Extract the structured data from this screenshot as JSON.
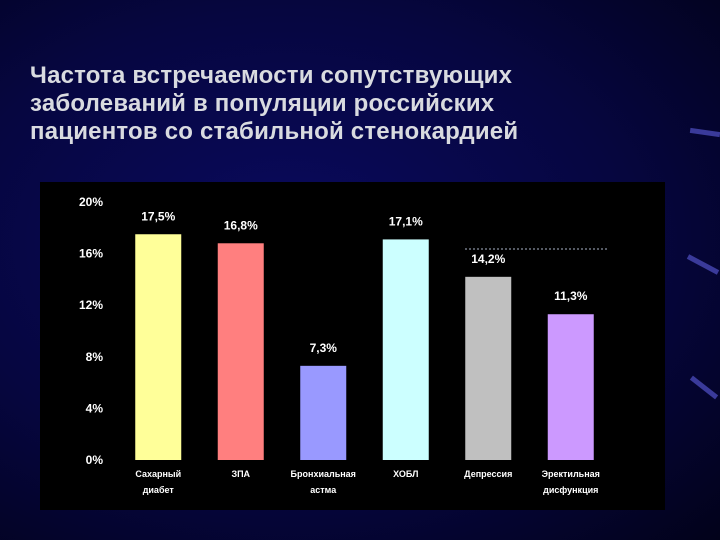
{
  "slide": {
    "title_lines": [
      "Частота встречаемости сопутствующих",
      "заболеваний в популяции российских",
      "пациентов со стабильной стенокардией"
    ]
  },
  "colors": {
    "background": "#060640",
    "title_text": "#d9dbe0",
    "chart_background": "#000000",
    "axis_text": "#ffffff"
  },
  "chart_data": {
    "type": "bar",
    "title": "",
    "xlabel": "",
    "ylabel": "",
    "ylim": [
      0,
      20
    ],
    "y_ticks": [
      "0%",
      "4%",
      "8%",
      "12%",
      "16%",
      "20%"
    ],
    "y_tick_values": [
      0,
      4,
      8,
      12,
      16,
      20
    ],
    "grid": false,
    "legend": "none",
    "categories": [
      [
        "Сахарный",
        "диабет"
      ],
      [
        "ЗПА"
      ],
      [
        "Бронхиальная",
        "астма"
      ],
      [
        "ХОБЛ"
      ],
      [
        "Депрессия"
      ],
      [
        "Эректильная",
        "дисфункция"
      ]
    ],
    "values": [
      17.5,
      16.8,
      7.3,
      17.1,
      14.2,
      11.3
    ],
    "value_labels": [
      "17,5%",
      "16,8%",
      "7,3%",
      "17,1%",
      "14,2%",
      "11,3%"
    ],
    "bar_colors": [
      "#ffff99",
      "#ff7f7f",
      "#9999ff",
      "#ccffff",
      "#c0c0c0",
      "#cc99ff"
    ]
  }
}
